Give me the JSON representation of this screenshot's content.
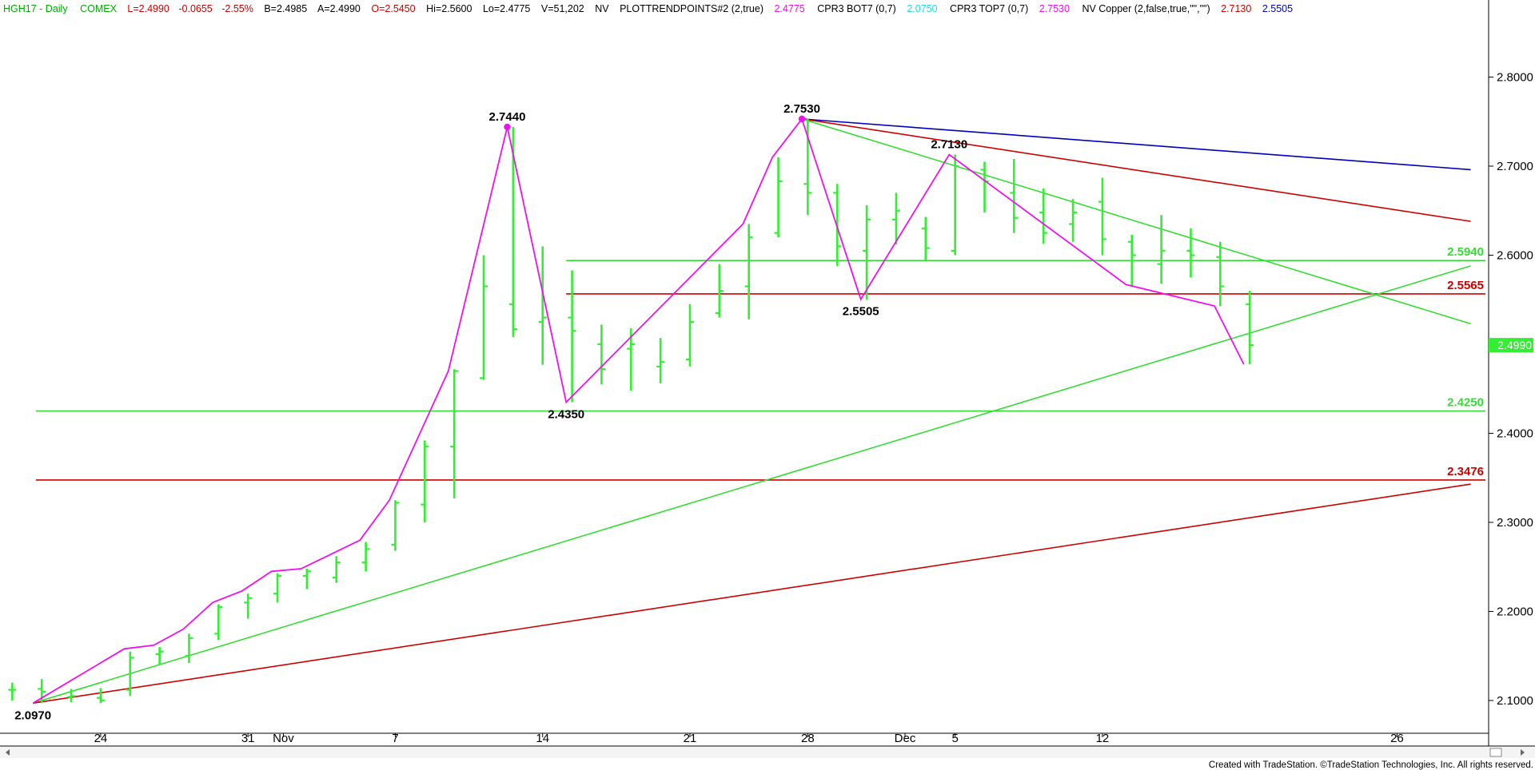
{
  "header": {
    "symbol": "HGH17 - Daily",
    "exchange": "COMEX",
    "last": "L=2.4990",
    "change": "-0.0655",
    "change_pct": "-2.55%",
    "bid": "B=2.4985",
    "ask": "A=2.4990",
    "open": "O=2.5450",
    "high": "Hi=2.5600",
    "low": "Lo=2.4775",
    "volume": "V=51,202",
    "nv1": "NV",
    "study1_name": "PLOTTRENDPOINTS#2 (2,true)",
    "study1_value": "2.4775",
    "study2_name": "CPR3 BOT7 (0,7)",
    "study2_value": "2.0750",
    "study3_name": "CPR3 TOP7 (0,7)",
    "study3_value": "2.7530",
    "study4_name": "NV Copper (2,false,true,\"\",\"\")",
    "study4_value1": "2.7130",
    "study4_value2": "2.5505"
  },
  "footer": "Created with TradeStation. ©TradeStation Technologies, Inc. All rights reserved.",
  "colors": {
    "bars": "#33ee33",
    "swing": "#ee11ee",
    "green_line": "#33dd33",
    "red_line": "#cc0000",
    "blue_line": "#0000bb",
    "last_tag": "#33ee33"
  },
  "chart_data": {
    "type": "ohlc",
    "y_axis": {
      "ylim": [
        2.065,
        2.865
      ],
      "ticks": [
        "2.1000",
        "2.2000",
        "2.3000",
        "2.4000",
        "2.5000",
        "2.6000",
        "2.7000",
        "2.8000"
      ],
      "position": "right"
    },
    "x_axis": {
      "labels": [
        {
          "text": "24",
          "bar": 3
        },
        {
          "text": "31",
          "bar": 8
        },
        {
          "text": "Nov",
          "bar": 9.2
        },
        {
          "text": "7",
          "bar": 13
        },
        {
          "text": "14",
          "bar": 18
        },
        {
          "text": "21",
          "bar": 23
        },
        {
          "text": "28",
          "bar": 27
        },
        {
          "text": "Dec",
          "bar": 30.3
        },
        {
          "text": "5",
          "bar": 32
        },
        {
          "text": "12",
          "bar": 37
        },
        {
          "text": "26",
          "bar": 47
        }
      ],
      "bar_range": [
        -0.2,
        50
      ]
    },
    "bars": [
      {
        "o": 2.112,
        "h": 2.12,
        "l": 2.1,
        "c": 2.112
      },
      {
        "o": 2.113,
        "h": 2.124,
        "l": 2.097,
        "c": 2.11
      },
      {
        "o": 2.104,
        "h": 2.113,
        "l": 2.098,
        "c": 2.105
      },
      {
        "o": 2.103,
        "h": 2.114,
        "l": 2.097,
        "c": 2.1
      },
      {
        "o": 2.112,
        "h": 2.155,
        "l": 2.105,
        "c": 2.148
      },
      {
        "o": 2.152,
        "h": 2.16,
        "l": 2.14,
        "c": 2.155
      },
      {
        "o": 2.15,
        "h": 2.175,
        "l": 2.142,
        "c": 2.17
      },
      {
        "o": 2.175,
        "h": 2.208,
        "l": 2.168,
        "c": 2.205
      },
      {
        "o": 2.21,
        "h": 2.22,
        "l": 2.192,
        "c": 2.215
      },
      {
        "o": 2.22,
        "h": 2.243,
        "l": 2.21,
        "c": 2.24
      },
      {
        "o": 2.24,
        "h": 2.248,
        "l": 2.225,
        "c": 2.245
      },
      {
        "o": 2.238,
        "h": 2.262,
        "l": 2.232,
        "c": 2.255
      },
      {
        "o": 2.255,
        "h": 2.278,
        "l": 2.245,
        "c": 2.27
      },
      {
        "o": 2.275,
        "h": 2.325,
        "l": 2.268,
        "c": 2.322
      },
      {
        "o": 2.32,
        "h": 2.392,
        "l": 2.3,
        "c": 2.385
      },
      {
        "o": 2.385,
        "h": 2.472,
        "l": 2.327,
        "c": 2.47
      },
      {
        "o": 2.462,
        "h": 2.6,
        "l": 2.46,
        "c": 2.565
      },
      {
        "o": 2.545,
        "h": 2.744,
        "l": 2.508,
        "c": 2.517
      },
      {
        "o": 2.525,
        "h": 2.61,
        "l": 2.477,
        "c": 2.53
      },
      {
        "o": 2.53,
        "h": 2.583,
        "l": 2.435,
        "c": 2.515
      },
      {
        "o": 2.5,
        "h": 2.522,
        "l": 2.455,
        "c": 2.472
      },
      {
        "o": 2.495,
        "h": 2.518,
        "l": 2.448,
        "c": 2.5
      },
      {
        "o": 2.475,
        "h": 2.507,
        "l": 2.456,
        "c": 2.48
      },
      {
        "o": 2.483,
        "h": 2.545,
        "l": 2.475,
        "c": 2.525
      },
      {
        "o": 2.535,
        "h": 2.59,
        "l": 2.53,
        "c": 2.56
      },
      {
        "o": 2.565,
        "h": 2.635,
        "l": 2.528,
        "c": 2.62
      },
      {
        "o": 2.625,
        "h": 2.71,
        "l": 2.62,
        "c": 2.683
      },
      {
        "o": 2.68,
        "h": 2.753,
        "l": 2.645,
        "c": 2.67
      },
      {
        "o": 2.67,
        "h": 2.68,
        "l": 2.588,
        "c": 2.61
      },
      {
        "o": 2.605,
        "h": 2.656,
        "l": 2.55,
        "c": 2.64
      },
      {
        "o": 2.64,
        "h": 2.67,
        "l": 2.612,
        "c": 2.65
      },
      {
        "o": 2.63,
        "h": 2.643,
        "l": 2.594,
        "c": 2.608
      },
      {
        "o": 2.605,
        "h": 2.713,
        "l": 2.6,
        "c": 2.7
      },
      {
        "o": 2.696,
        "h": 2.705,
        "l": 2.648,
        "c": 2.683
      },
      {
        "o": 2.67,
        "h": 2.708,
        "l": 2.625,
        "c": 2.642
      },
      {
        "o": 2.648,
        "h": 2.675,
        "l": 2.613,
        "c": 2.625
      },
      {
        "o": 2.635,
        "h": 2.663,
        "l": 2.615,
        "c": 2.648
      },
      {
        "o": 2.66,
        "h": 2.687,
        "l": 2.6,
        "c": 2.618
      },
      {
        "o": 2.615,
        "h": 2.623,
        "l": 2.565,
        "c": 2.6
      },
      {
        "o": 2.59,
        "h": 2.645,
        "l": 2.568,
        "c": 2.605
      },
      {
        "o": 2.605,
        "h": 2.63,
        "l": 2.575,
        "c": 2.6
      },
      {
        "o": 2.598,
        "h": 2.615,
        "l": 2.543,
        "c": 2.565
      },
      {
        "o": 2.545,
        "h": 2.56,
        "l": 2.4775,
        "c": 2.499
      }
    ],
    "trend_points": [
      {
        "bar": 0.7,
        "value": 2.097,
        "label": "2.0970"
      },
      {
        "bar": 3.8,
        "value": 2.158
      },
      {
        "bar": 4.8,
        "value": 2.162
      },
      {
        "bar": 5.8,
        "value": 2.18
      },
      {
        "bar": 6.8,
        "value": 2.21
      },
      {
        "bar": 7.8,
        "value": 2.223
      },
      {
        "bar": 8.8,
        "value": 2.245
      },
      {
        "bar": 9.8,
        "value": 2.248
      },
      {
        "bar": 11.8,
        "value": 2.28
      },
      {
        "bar": 12.8,
        "value": 2.325
      },
      {
        "bar": 14.8,
        "value": 2.47
      },
      {
        "bar": 16.8,
        "value": 2.744,
        "label": "2.7440"
      },
      {
        "bar": 18.8,
        "value": 2.435,
        "label": "2.4350"
      },
      {
        "bar": 24.8,
        "value": 2.635
      },
      {
        "bar": 25.8,
        "value": 2.71
      },
      {
        "bar": 26.8,
        "value": 2.753,
        "label": "2.7530"
      },
      {
        "bar": 28.8,
        "value": 2.5505,
        "label": "2.5505"
      },
      {
        "bar": 31.8,
        "value": 2.713,
        "label": "2.7130"
      },
      {
        "bar": 37.8,
        "value": 2.567
      },
      {
        "bar": 40.8,
        "value": 2.543
      },
      {
        "bar": 41.8,
        "value": 2.4775
      }
    ],
    "horizontal_levels": [
      {
        "value": 2.594,
        "label": "2.5940",
        "color": "green",
        "from_bar": 18.8
      },
      {
        "value": 2.5565,
        "label": "2.5565",
        "color": "red",
        "from_bar": 18.8
      },
      {
        "value": 2.425,
        "label": "2.4250",
        "color": "green",
        "from_bar": 0.8
      },
      {
        "value": 2.3476,
        "label": "2.3476",
        "color": "red",
        "from_bar": 0.8
      }
    ],
    "trend_lines": [
      {
        "color": "blue",
        "from": {
          "bar": 26.8,
          "value": 2.753
        },
        "to": {
          "bar": 49.5,
          "value": 2.696
        }
      },
      {
        "color": "red",
        "from": {
          "bar": 26.8,
          "value": 2.753
        },
        "to": {
          "bar": 49.5,
          "value": 2.638
        }
      },
      {
        "color": "green",
        "from": {
          "bar": 26.8,
          "value": 2.753
        },
        "to": {
          "bar": 49.5,
          "value": 2.523
        }
      },
      {
        "color": "green",
        "from": {
          "bar": 0.7,
          "value": 2.097
        },
        "to": {
          "bar": 49.5,
          "value": 2.588
        }
      },
      {
        "color": "red",
        "from": {
          "bar": 0.7,
          "value": 2.097
        },
        "to": {
          "bar": 49.5,
          "value": 2.343
        }
      }
    ],
    "last_price": "2.4990"
  }
}
